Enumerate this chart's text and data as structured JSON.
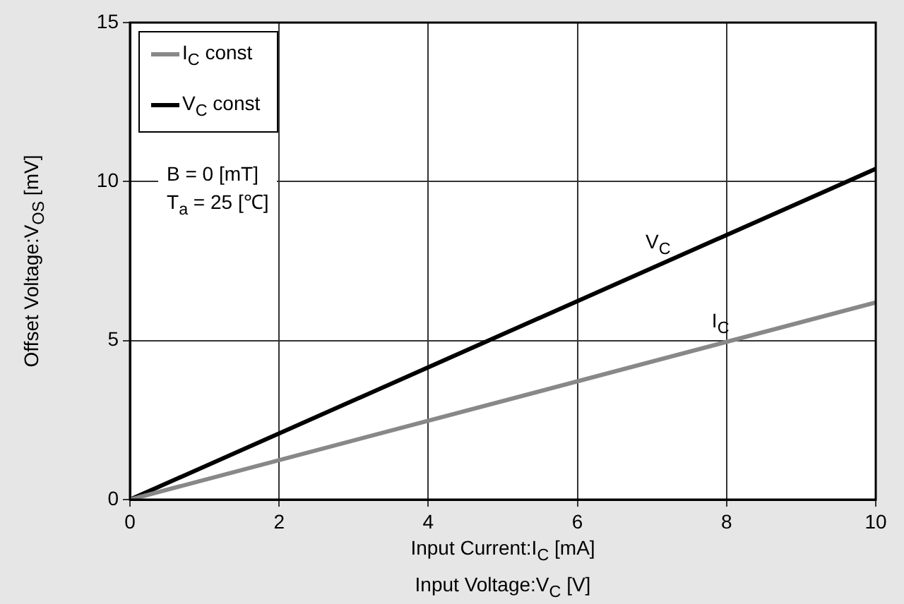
{
  "chart_data": {
    "type": "line",
    "xlabel": "Input Current:I$_{C}$ [mA]\nInput Voltage:V$_{C}$ [V]",
    "ylabel": "Offset Voltage:V$_{OS}$ [mV]",
    "x": [
      0,
      10
    ],
    "series": [
      {
        "name": "I$_{C}$ const",
        "color": "#888888",
        "values": [
          0,
          6.2
        ]
      },
      {
        "name": "V$_{C}$ const",
        "color": "#000000",
        "values": [
          0,
          10.4
        ]
      }
    ],
    "xlim": [
      0,
      10
    ],
    "xticks": [
      0,
      2,
      4,
      6,
      8,
      10
    ],
    "ylim": [
      0,
      15
    ],
    "yticks": [
      0,
      5,
      10,
      15
    ],
    "grid": true,
    "legend": "top left",
    "marker": "none",
    "line_style": "solid",
    "annotations": [
      "B = 0 [mT]",
      "T$_{a}$ = 25 [℃]",
      {
        "text": "V$_{C}$",
        "x": 7.2,
        "y": 7.5
      },
      {
        "text": "I$_{C}$",
        "x": 8,
        "y": 5
      }
    ]
  }
}
